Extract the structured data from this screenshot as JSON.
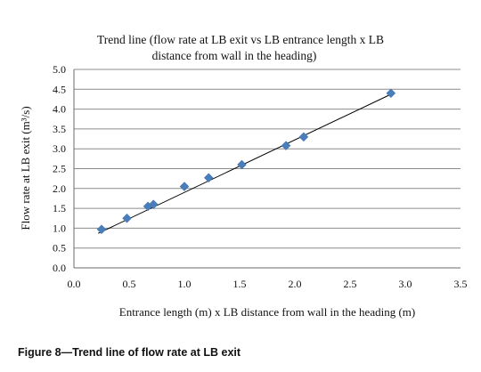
{
  "chart_data": {
    "type": "scatter",
    "title_lines": [
      "Trend line (flow rate at LB exit  vs LB entrance length x LB",
      "distance from wall in the heading)"
    ],
    "xlabel": "Entrance length (m) x LB distance from wall in the heading (m)",
    "ylabel": "Flow rate at LB exit (m³/s)",
    "xlim": [
      0.0,
      3.5
    ],
    "ylim": [
      0.0,
      5.0
    ],
    "x_ticks": [
      "0.0",
      "0.5",
      "1.0",
      "1.5",
      "2.0",
      "2.5",
      "3.0",
      "3.5"
    ],
    "y_ticks": [
      "0.0",
      "0.5",
      "1.0",
      "1.5",
      "2.0",
      "2.5",
      "3.0",
      "3.5",
      "4.0",
      "4.5",
      "5.0"
    ],
    "grid": "horizontal",
    "series": [
      {
        "marker": "diamond",
        "color": "#4a7ebb",
        "points": [
          {
            "x": 0.25,
            "y": 0.97
          },
          {
            "x": 0.48,
            "y": 1.25
          },
          {
            "x": 0.67,
            "y": 1.55
          },
          {
            "x": 0.72,
            "y": 1.6
          },
          {
            "x": 1.0,
            "y": 2.05
          },
          {
            "x": 1.22,
            "y": 2.27
          },
          {
            "x": 1.52,
            "y": 2.6
          },
          {
            "x": 1.92,
            "y": 3.08
          },
          {
            "x": 2.08,
            "y": 3.3
          },
          {
            "x": 2.87,
            "y": 4.4
          }
        ]
      }
    ],
    "trendline": {
      "type": "linear",
      "x_range": [
        0.22,
        2.89
      ],
      "y_range": [
        0.87,
        4.4
      ],
      "color": "#000000"
    }
  },
  "caption": "Figure 8—Trend line of flow rate at LB exit"
}
